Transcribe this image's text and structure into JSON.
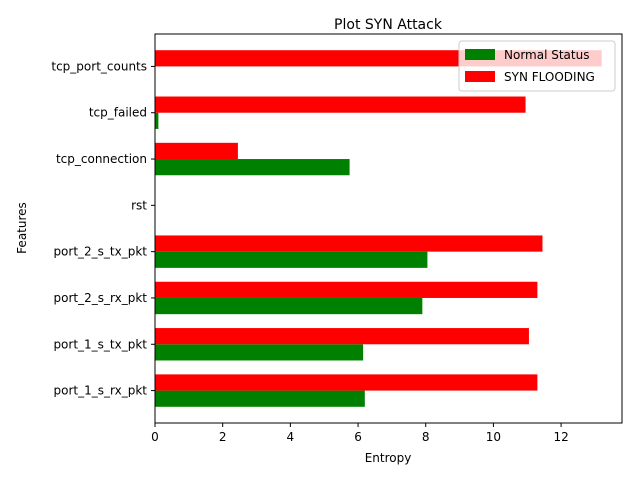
{
  "chart_data": {
    "type": "bar",
    "orientation": "horizontal",
    "title": "Plot SYN Attack",
    "xlabel": "Entropy",
    "ylabel": "Features",
    "xlim": [
      0,
      13.8
    ],
    "xticks": [
      0,
      2,
      4,
      6,
      8,
      10,
      12
    ],
    "categories": [
      "port_1_s_rx_pkt",
      "port_1_s_tx_pkt",
      "port_2_s_rx_pkt",
      "port_2_s_tx_pkt",
      "rst",
      "tcp_connection",
      "tcp_failed",
      "tcp_port_counts"
    ],
    "series": [
      {
        "name": "Normal Status",
        "color": "#008000",
        "values": [
          6.2,
          6.15,
          7.9,
          8.05,
          0,
          5.75,
          0.1,
          0
        ]
      },
      {
        "name": "SYN FLOODING",
        "color": "#ff0000",
        "values": [
          11.3,
          11.05,
          11.3,
          11.45,
          0,
          2.45,
          10.95,
          13.2
        ]
      }
    ],
    "legend_position": "top-right",
    "grid": false
  }
}
